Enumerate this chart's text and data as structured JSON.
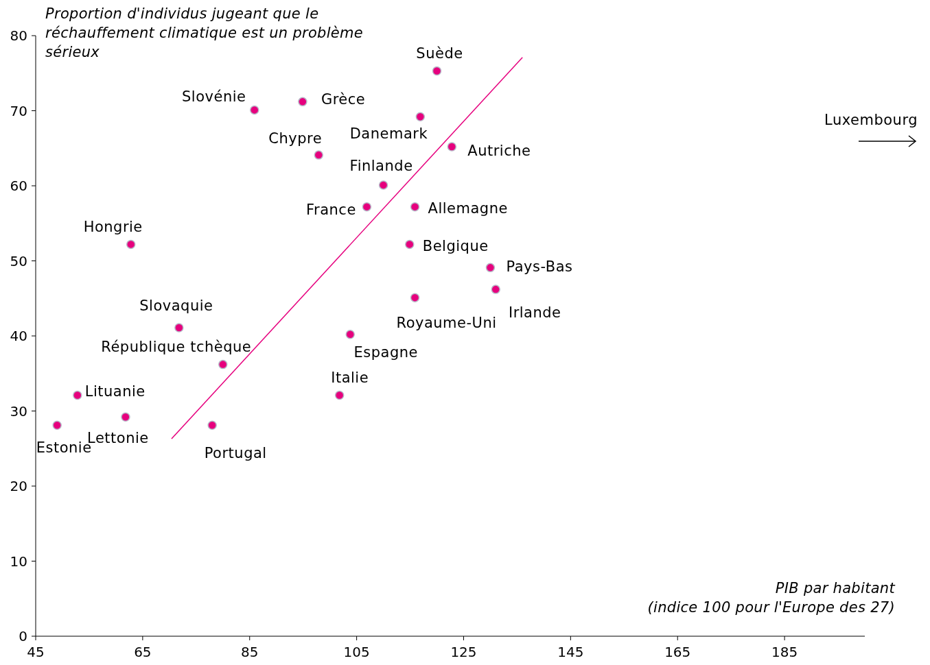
{
  "chart_data": {
    "type": "scatter",
    "ylabel": "Proportion d'individus jugeant que le\nréchauffement climatique est un problème\nsérieux",
    "xlabel": "PIB par habitant\n(indice 100 pour l'Europe des 27)",
    "xlim": [
      45,
      200
    ],
    "xticks": [
      45,
      65,
      85,
      105,
      125,
      145,
      165,
      185
    ],
    "ylim": [
      0,
      80
    ],
    "yticks": [
      0,
      10,
      20,
      30,
      40,
      50,
      60,
      70,
      80
    ],
    "grid": false,
    "series": [
      {
        "marker": "circle",
        "color": "#e6007e",
        "x": [
          49.0,
          52.8,
          61.8,
          62.8,
          71.8,
          80.0,
          78.0,
          85.9,
          94.9,
          97.9,
          101.8,
          103.8,
          106.9,
          110.0,
          114.9,
          115.9,
          115.9,
          116.9,
          120.0,
          122.8,
          130.0,
          131.0
        ],
        "values": [
          28.1,
          32.1,
          29.2,
          52.2,
          41.1,
          36.2,
          28.1,
          70.1,
          71.2,
          64.1,
          32.1,
          40.2,
          57.2,
          60.1,
          52.2,
          57.2,
          45.1,
          69.2,
          75.3,
          65.2,
          49.1,
          46.2
        ]
      },
      {
        "type": "line",
        "color": "#e6007e",
        "x": [
          70.4,
          136.0
        ],
        "values": [
          26.3,
          77.1
        ]
      }
    ],
    "annotations": [
      {
        "text": "Estonie",
        "x": 49.0,
        "y": 28.1
      },
      {
        "text": "Lituanie",
        "x": 52.8,
        "y": 32.1
      },
      {
        "text": "Lettonie",
        "x": 61.8,
        "y": 29.2
      },
      {
        "text": "Hongrie",
        "x": 62.8,
        "y": 52.2
      },
      {
        "text": "Slovaquie",
        "x": 71.8,
        "y": 41.1
      },
      {
        "text": "République tchèque",
        "x": 80.0,
        "y": 36.2
      },
      {
        "text": "Portugal",
        "x": 78.0,
        "y": 28.1
      },
      {
        "text": "Slovénie",
        "x": 85.9,
        "y": 70.1
      },
      {
        "text": "Grèce",
        "x": 94.9,
        "y": 71.2
      },
      {
        "text": "Chypre",
        "x": 97.9,
        "y": 64.1
      },
      {
        "text": "Italie",
        "x": 101.8,
        "y": 32.1
      },
      {
        "text": "Espagne",
        "x": 103.8,
        "y": 40.2
      },
      {
        "text": "France",
        "x": 106.9,
        "y": 57.2
      },
      {
        "text": "Finlande",
        "x": 110.0,
        "y": 60.1
      },
      {
        "text": "Belgique",
        "x": 114.9,
        "y": 52.2
      },
      {
        "text": "Allemagne",
        "x": 115.9,
        "y": 57.2
      },
      {
        "text": "Royaume-Uni",
        "x": 115.9,
        "y": 45.1
      },
      {
        "text": "Danemark",
        "x": 116.9,
        "y": 69.2
      },
      {
        "text": "Suède",
        "x": 120.0,
        "y": 75.3
      },
      {
        "text": "Autriche",
        "x": 122.8,
        "y": 65.2
      },
      {
        "text": "Pays-Bas",
        "x": 130.0,
        "y": 49.1
      },
      {
        "text": "Irlande",
        "x": 131.0,
        "y": 46.2
      },
      "Luxembourg"
    ]
  }
}
